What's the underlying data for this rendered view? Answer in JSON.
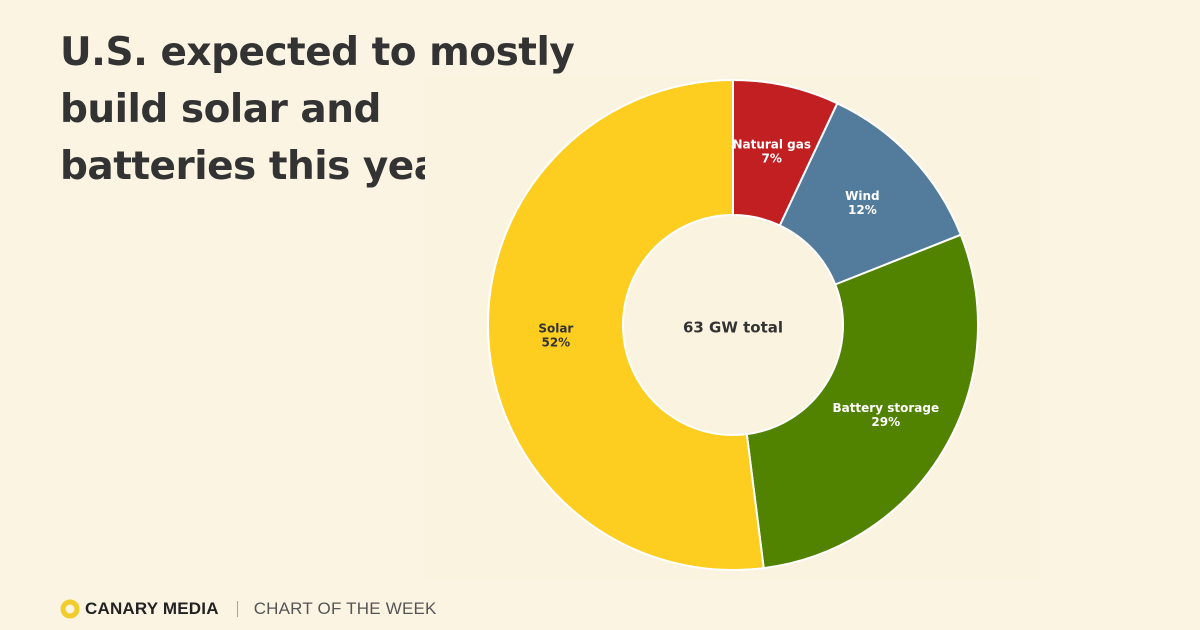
{
  "headline": "U.S. expected to mostly build solar and batteries this year",
  "chart_data": {
    "type": "pie",
    "variant": "donut",
    "center_label": "63 GW total",
    "total": 63,
    "total_unit": "GW",
    "slices": [
      {
        "label": "Natural gas",
        "value": 7,
        "value_label": "7%",
        "color": "#c11f21",
        "text_color": "#ffffff"
      },
      {
        "label": "Wind",
        "value": 12,
        "value_label": "12%",
        "color": "#537b9b",
        "text_color": "#ffffff"
      },
      {
        "label": "Battery storage",
        "value": 29,
        "value_label": "29%",
        "color": "#518200",
        "text_color": "#ffffff"
      },
      {
        "label": "Solar",
        "value": 52,
        "value_label": "52%",
        "color": "#fdcd1f",
        "text_color": "#333333"
      }
    ],
    "start": "top",
    "direction": "clockwise"
  },
  "footer": {
    "brand": "CANARY MEDIA",
    "section": "CHART OF THE WEEK",
    "logo_icon": "canary-circle-icon",
    "logo_color": "#f1cc2c"
  }
}
